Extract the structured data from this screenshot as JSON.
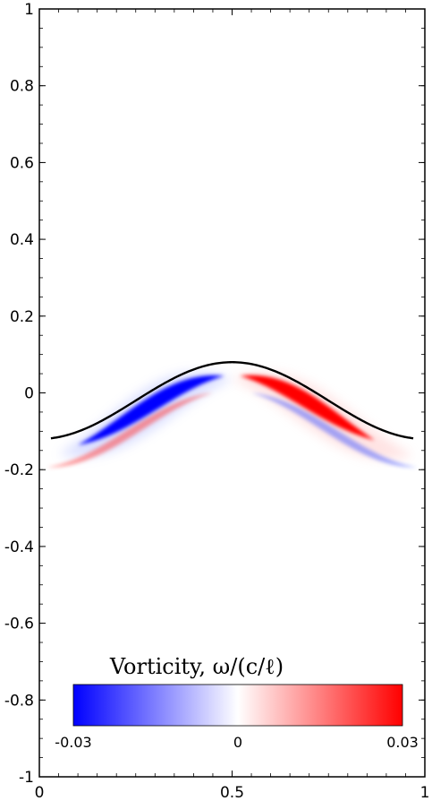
{
  "chart_data": {
    "type": "heatmap",
    "title": "",
    "xlabel": "",
    "ylabel": "",
    "xlim": [
      0,
      1
    ],
    "ylim": [
      -1,
      1
    ],
    "x_ticks": [
      0,
      0.5,
      1
    ],
    "x_tick_labels": [
      "0",
      "0.5",
      "1"
    ],
    "y_ticks": [
      1,
      0.8,
      0.6,
      0.4,
      0.2,
      0,
      -0.2,
      -0.4,
      -0.6,
      -0.8,
      -1
    ],
    "y_tick_labels": [
      "1",
      "0.8",
      "0.6",
      "0.4",
      "0.2",
      "0",
      "-0.2",
      "-0.4",
      "-0.6",
      "-0.8",
      "-1"
    ],
    "grid": false,
    "interface_curve": {
      "description_of_shape": "cosine",
      "x": [
        0,
        0.1,
        0.2,
        0.3,
        0.4,
        0.5,
        0.6,
        0.7,
        0.8,
        0.9,
        1.0
      ],
      "y": [
        -0.12,
        -0.1,
        -0.04,
        0.02,
        0.065,
        0.08,
        0.065,
        0.02,
        -0.04,
        -0.1,
        -0.12
      ]
    },
    "vorticity_field": {
      "negative_band": {
        "x_range": [
          0.1,
          0.48
        ],
        "peak_value": -0.03,
        "color": "#0000ff"
      },
      "positive_band": {
        "x_range": [
          0.52,
          0.87
        ],
        "peak_value": 0.03,
        "color": "#ff0000"
      }
    },
    "colorbar": {
      "title": "Vorticity, ω/(c/ℓ)",
      "min": -0.03,
      "max": 0.03,
      "tick_labels": [
        "-0.03",
        "0",
        "0.03"
      ],
      "colors": [
        "#0000ff",
        "#ffffff",
        "#ff0000"
      ]
    }
  }
}
